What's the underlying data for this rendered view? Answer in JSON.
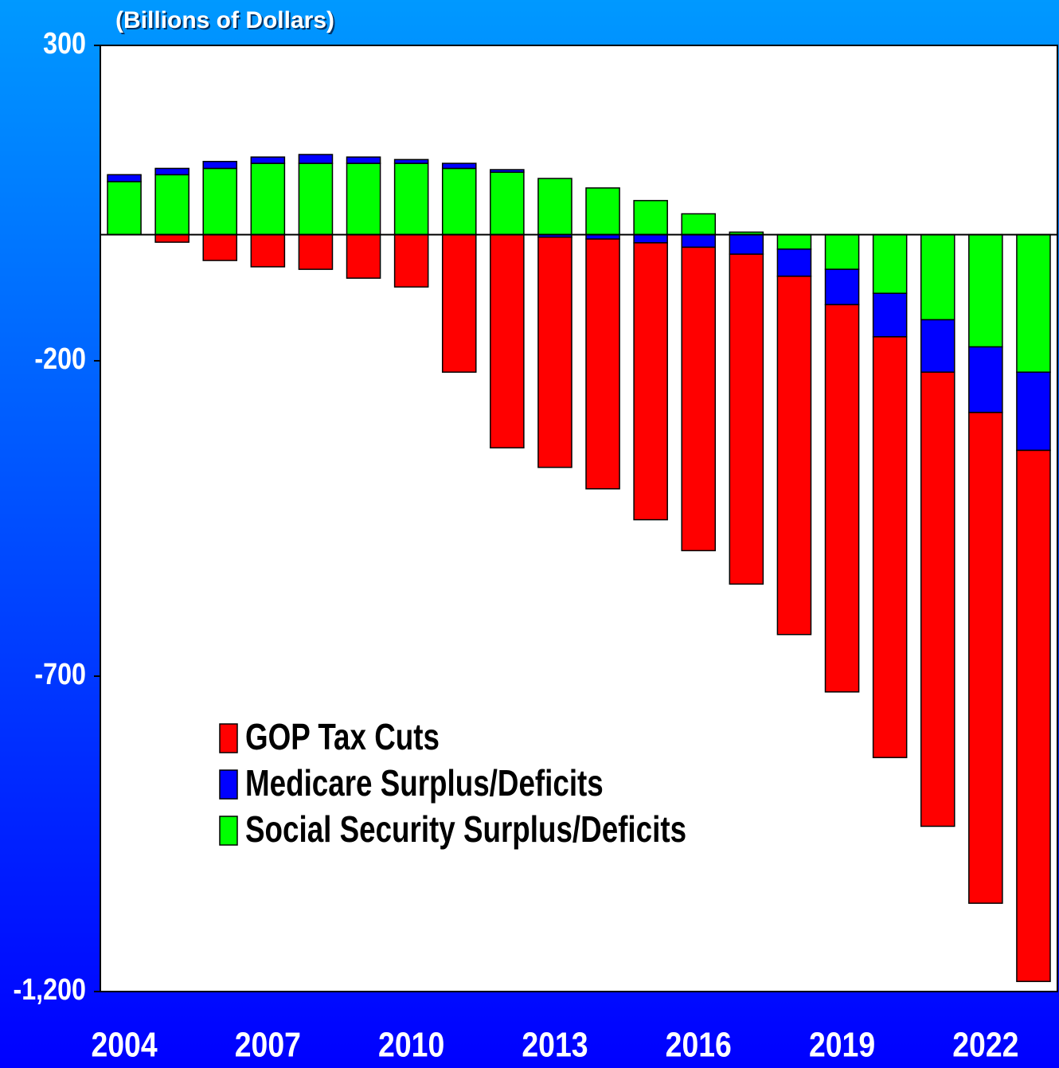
{
  "chart_data": {
    "type": "stacked_bar",
    "title": "(Billions of Dollars)",
    "categories": [
      "2004",
      null,
      null,
      "2007",
      null,
      null,
      "2010",
      null,
      null,
      "2013",
      null,
      null,
      "2016",
      null,
      null,
      "2019",
      null,
      null,
      "2022",
      null
    ],
    "series": [
      {
        "name": "Social Security Surplus/Deficits",
        "color": "#00ff00",
        "values": [
          84,
          95,
          105,
          113,
          113,
          113,
          113,
          105,
          99,
          89,
          74,
          54,
          33,
          4,
          -23,
          -55,
          -93,
          -135,
          -178,
          -218
        ]
      },
      {
        "name": "Medicare Surplus/Deficits",
        "color": "#0000ff",
        "values": [
          11,
          10,
          11,
          10,
          14,
          10,
          6,
          8,
          4,
          -4,
          -7,
          -13,
          -20,
          -31,
          -43,
          -56,
          -69,
          -83,
          -104,
          -124
        ]
      },
      {
        "name": "GOP Tax Cuts",
        "color": "#ff0000",
        "values": [
          0,
          -12,
          -41,
          -51,
          -55,
          -69,
          -83,
          -218,
          -338,
          -365,
          -396,
          -439,
          -481,
          -523,
          -568,
          -614,
          -667,
          -720,
          -778,
          -842
        ]
      }
    ],
    "legend_order": [
      2,
      1,
      0
    ],
    "legend_position": "lower left",
    "ylim": [
      -1200,
      300
    ],
    "yticks": [
      300,
      -200,
      -700,
      {
        "value": -1200,
        "label": "-1,200"
      }
    ]
  }
}
